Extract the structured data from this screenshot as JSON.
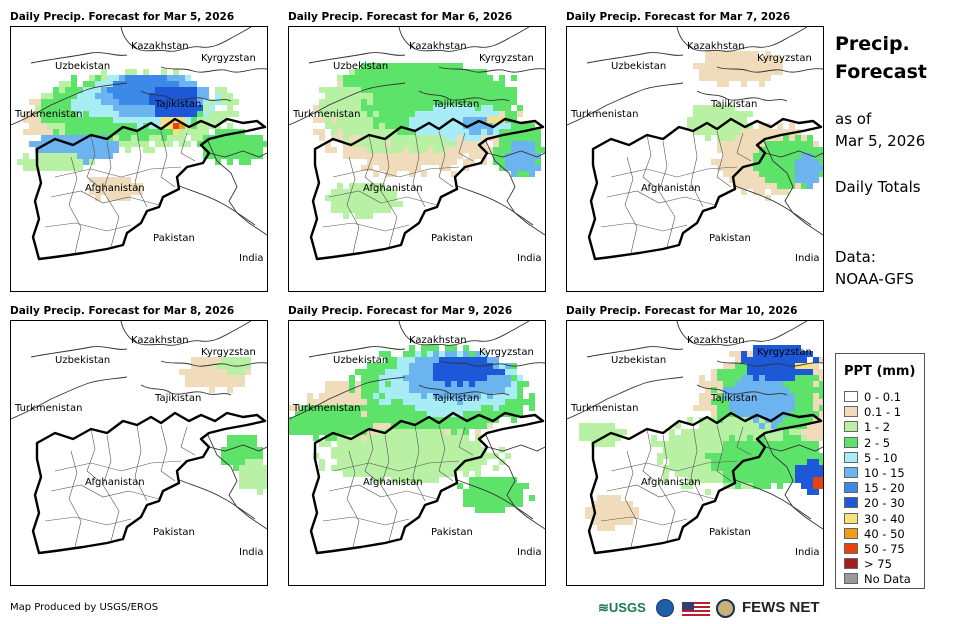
{
  "panels": [
    {
      "title": "Daily Precip. Forecast for Mar 5, 2026"
    },
    {
      "title": "Daily Precip. Forecast for Mar 6, 2026"
    },
    {
      "title": "Daily Precip. Forecast for Mar 7, 2026"
    },
    {
      "title": "Daily Precip. Forecast for Mar 8, 2026"
    },
    {
      "title": "Daily Precip. Forecast for Mar 9, 2026"
    },
    {
      "title": "Daily Precip. Forecast for Mar 10, 2026"
    }
  ],
  "map_labels": {
    "kazakhstan": "Kazakhstan",
    "uzbekistan": "Uzbekistan",
    "kyrgyzstan": "Kyrgyzstan",
    "tajikistan": "Tajikistan",
    "turkmenistan": "Turkmenistan",
    "afghanistan": "Afghanistan",
    "pakistan": "Pakistan",
    "india": "India"
  },
  "info": {
    "title_line1": "Precip.",
    "title_line2": "Forecast",
    "as_of_line1": "as of",
    "as_of_line2": "Mar 5, 2026",
    "totals": "Daily Totals",
    "data_line1": "Data:",
    "data_line2": "NOAA-GFS"
  },
  "legend": {
    "title": "PPT (mm)",
    "items": [
      {
        "label": "0 - 0.1",
        "color": "#ffffff"
      },
      {
        "label": "0.1 - 1",
        "color": "#f0dcbb"
      },
      {
        "label": "1 - 2",
        "color": "#b8f0a4"
      },
      {
        "label": "2 - 5",
        "color": "#5de26a"
      },
      {
        "label": "5 - 10",
        "color": "#a8ecf5"
      },
      {
        "label": "10 - 15",
        "color": "#6cb4ef"
      },
      {
        "label": "15 - 20",
        "color": "#3c8ae8"
      },
      {
        "label": "20 - 30",
        "color": "#1c58d8"
      },
      {
        "label": "30 - 40",
        "color": "#f8e07a"
      },
      {
        "label": "40 - 50",
        "color": "#f39b1a"
      },
      {
        "label": "50 - 75",
        "color": "#e8420f"
      },
      {
        "label": "> 75",
        "color": "#a31e1e"
      },
      {
        "label": "No Data",
        "color": "#9a9a9a"
      }
    ]
  },
  "footer": {
    "credit": "Map Produced by USGS/EROS"
  },
  "logos": {
    "usgs": "≋USGS",
    "fews": "FEWS NET"
  }
}
